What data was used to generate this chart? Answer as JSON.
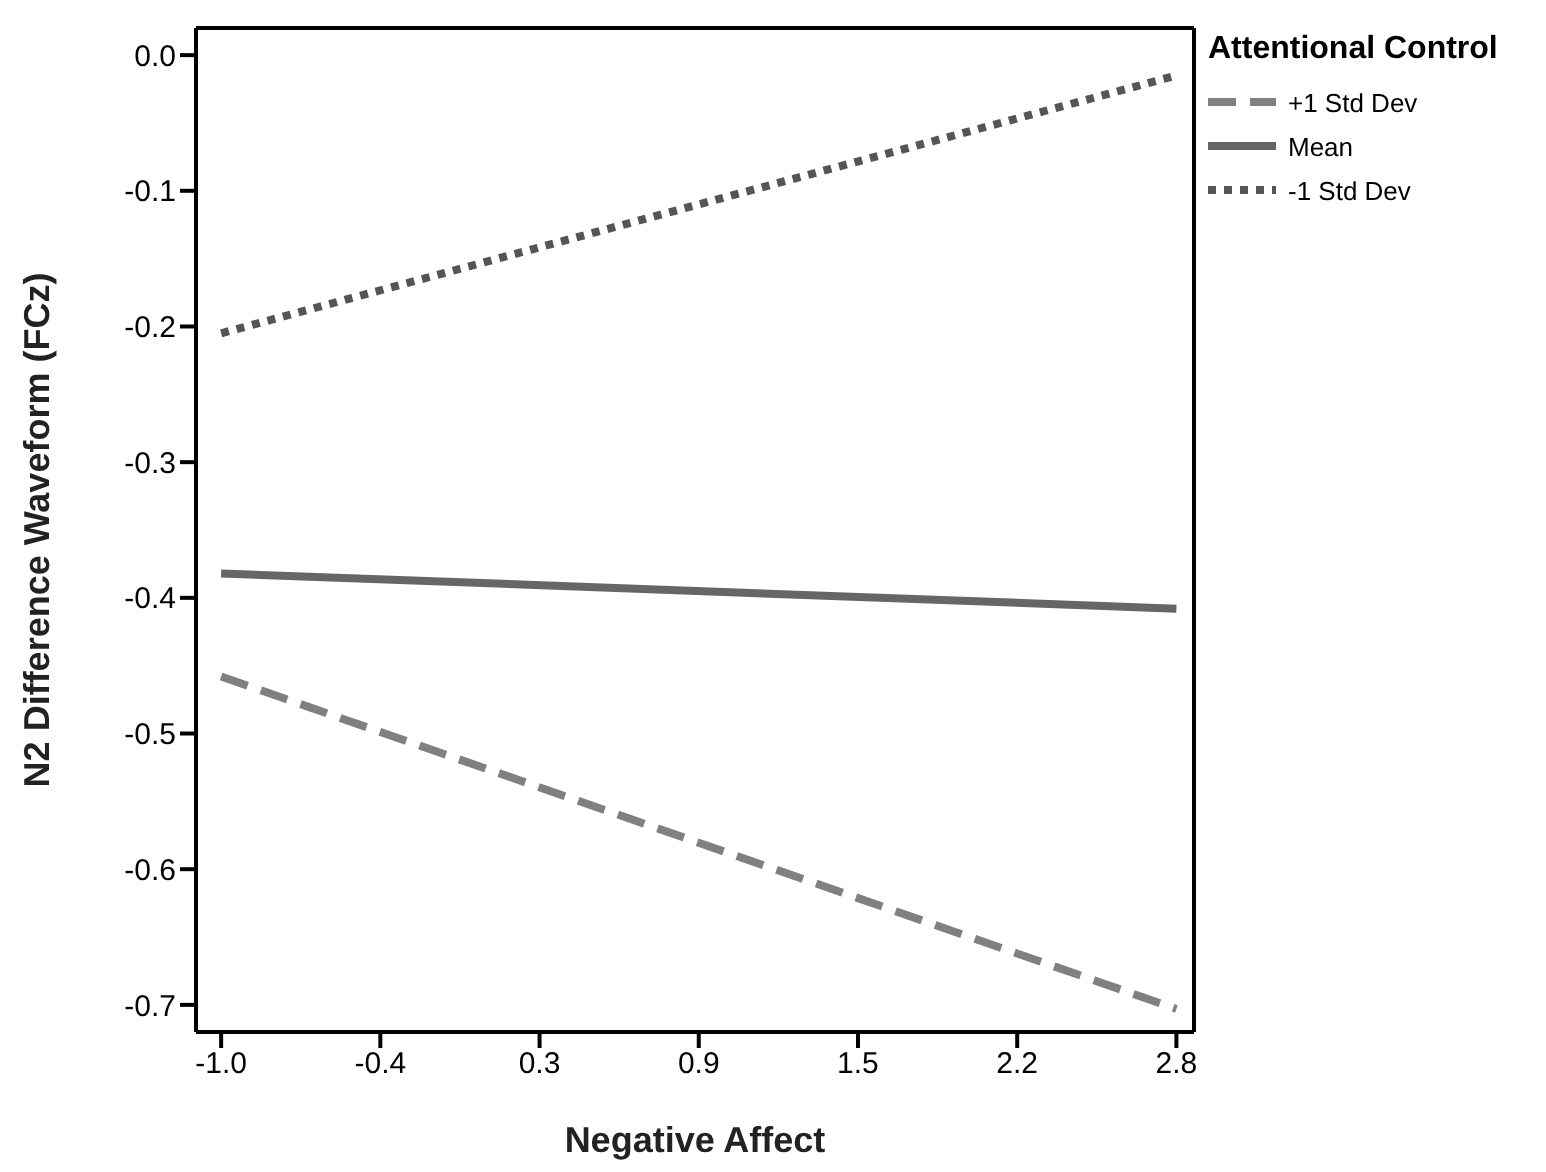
{
  "chart_data": {
    "type": "line",
    "xlabel": "Negative Affect",
    "ylabel": "N2 Difference Waveform (FCz)",
    "legend_title": "Attentional Control",
    "legend": "top right",
    "marker": "none",
    "xlim": [
      -1.1,
      2.87
    ],
    "xticks": [
      {
        "value": -1,
        "label": "-1.0"
      },
      {
        "value": -0.3667,
        "label": "-0.4"
      },
      {
        "value": 0.2667,
        "label": "0.3"
      },
      0.9,
      {
        "value": 1.5333,
        "label": "1.5"
      },
      {
        "value": 2.1667,
        "label": "2.2"
      },
      2.8
    ],
    "ylim": [
      -0.72,
      0.02
    ],
    "yticks": [
      {
        "value": 0,
        "label": "0.0"
      },
      -0.1,
      -0.2,
      -0.3,
      -0.4,
      -0.5,
      -0.6,
      -0.7
    ],
    "x": [
      -1.0,
      2.8
    ],
    "series": [
      {
        "name": "+1 Std Dev",
        "color": "#808080",
        "line_style": "dashed",
        "values": [
          -0.458,
          -0.703
        ]
      },
      {
        "name": "Mean",
        "color": "#666666",
        "line_style": "solid",
        "values": [
          -0.382,
          -0.408
        ]
      },
      {
        "name": "-1 Std Dev",
        "color": "#555555",
        "line_style": "dotted",
        "values": [
          -0.205,
          -0.015
        ]
      }
    ]
  }
}
